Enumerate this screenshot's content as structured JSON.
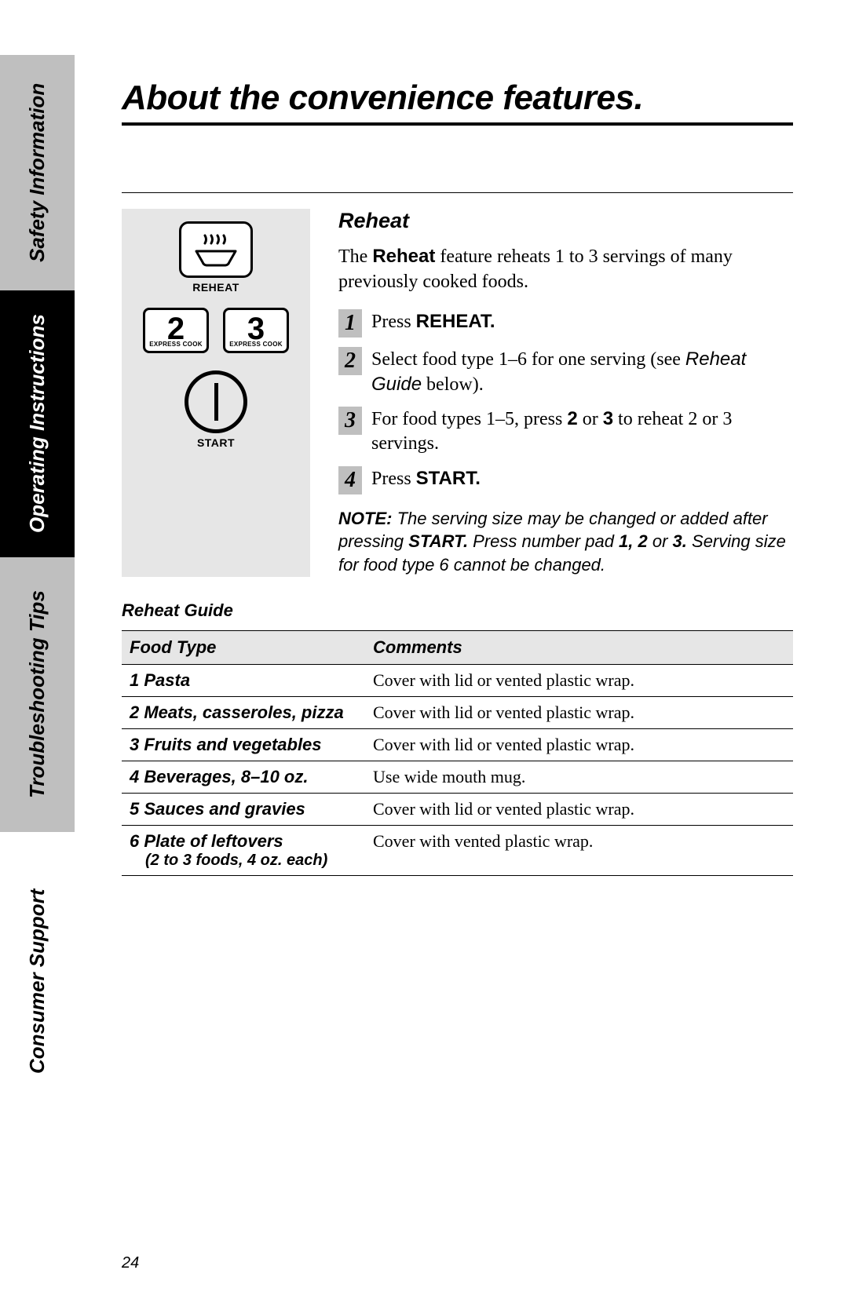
{
  "tabs": {
    "safety": "Safety Information",
    "operating": "Operating Instructions",
    "trouble": "Troubleshooting Tips",
    "consumer": "Consumer Support"
  },
  "page_title": "About the convenience features.",
  "panel": {
    "reheat_label": "REHEAT",
    "btn2_num": "2",
    "btn2_sub": "EXPRESS COOK",
    "btn3_num": "3",
    "btn3_sub": "EXPRESS COOK",
    "start_label": "START"
  },
  "section_title": "Reheat",
  "intro_pre": "The ",
  "intro_bold": "Reheat",
  "intro_post": " feature reheats 1 to 3 servings of many previously cooked foods.",
  "steps": [
    {
      "num": "1",
      "pre": "Press ",
      "bold": "REHEAT.",
      "post": ""
    },
    {
      "num": "2",
      "pre": "Select food type 1–6 for one serving (see ",
      "ital": "Reheat Guide",
      "post2": " below)."
    },
    {
      "num": "3",
      "pre": "For food types 1–5, press ",
      "bold": "2",
      "mid": " or ",
      "bold2": "3",
      "post": "  to reheat 2 or 3 servings."
    },
    {
      "num": "4",
      "pre": "Press ",
      "bold": "START.",
      "post": ""
    }
  ],
  "note": {
    "label": "NOTE:",
    "t1": " The serving size may be changed or added after pressing ",
    "b1": "START.",
    "t2": " Press number pad ",
    "b2": "1, 2",
    "t3": " or ",
    "b3": "3.",
    "t4": " Serving size for food type 6 cannot be changed."
  },
  "guide_title": "Reheat Guide",
  "guide_headers": {
    "food": "Food Type",
    "comments": "Comments"
  },
  "guide_rows": [
    {
      "n": "1",
      "name": "Pasta",
      "comment": "Cover with lid or vented plastic wrap."
    },
    {
      "n": "2",
      "name": "Meats, casseroles, pizza",
      "comment": "Cover with lid or vented plastic wrap."
    },
    {
      "n": "3",
      "name": "Fruits and vegetables",
      "comment": "Cover with lid or vented plastic wrap."
    },
    {
      "n": "4",
      "name": "Beverages, 8–10 oz.",
      "comment": "Use wide mouth mug."
    },
    {
      "n": "5",
      "name": "Sauces and gravies",
      "comment": "Cover with lid or vented plastic wrap."
    },
    {
      "n": "6",
      "name": "Plate of leftovers",
      "sub": "(2 to 3 foods, 4 oz. each)",
      "comment": "Cover with vented plastic wrap."
    }
  ],
  "page_number": "24",
  "colors": {
    "gray": "#bfbfbf",
    "panel": "#e6e6e6",
    "black": "#000000"
  }
}
